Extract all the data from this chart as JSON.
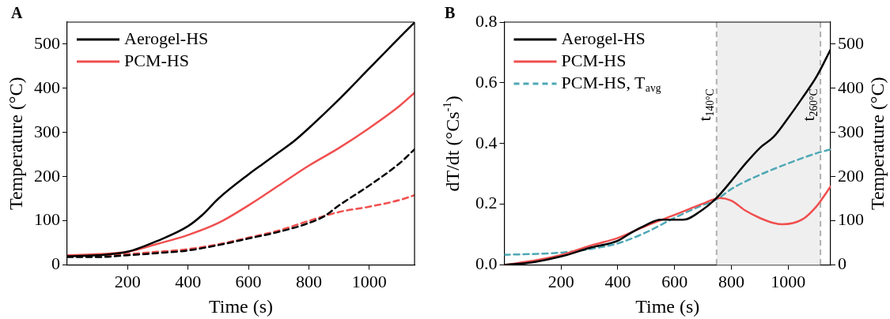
{
  "chart_data": [
    {
      "type": "line",
      "title": "A",
      "xlabel": "Time (s)",
      "ylabel": "Temperature (°C)",
      "xlim": [
        0,
        1150
      ],
      "xticks": [
        200,
        400,
        600,
        800,
        1000
      ],
      "ylim": [
        0,
        550
      ],
      "yticks": [
        0,
        100,
        200,
        300,
        400,
        500
      ],
      "legend": "top left",
      "grid": false,
      "series": [
        {
          "name": "Aerogel-HS",
          "color": "#000000",
          "x": [
            0,
            100,
            200,
            300,
            400,
            450,
            500,
            600,
            650,
            700,
            750,
            800,
            900,
            1000,
            1100,
            1150
          ],
          "values": [
            20,
            22,
            30,
            55,
            88,
            115,
            150,
            205,
            230,
            255,
            280,
            310,
            375,
            445,
            515,
            549
          ]
        },
        {
          "name": "PCM-HS",
          "color": "#f04f4f",
          "x": [
            0,
            200,
            300,
            400,
            500,
            600,
            700,
            800,
            900,
            1000,
            1100,
            1150
          ],
          "values": [
            22,
            30,
            48,
            68,
            95,
            135,
            180,
            225,
            265,
            310,
            360,
            390
          ]
        },
        {
          "color": "#000000",
          "line_style": "dashed",
          "x": [
            0,
            100,
            200,
            300,
            400,
            500,
            600,
            700,
            800,
            850,
            900,
            1000,
            1100,
            1150
          ],
          "values": [
            18,
            18,
            22,
            27,
            33,
            45,
            60,
            75,
            95,
            110,
            135,
            180,
            230,
            262
          ]
        },
        {
          "color": "#f04f4f",
          "line_style": "dashed",
          "x": [
            0,
            100,
            200,
            300,
            400,
            500,
            600,
            700,
            800,
            900,
            1000,
            1100,
            1150
          ],
          "values": [
            22,
            22,
            25,
            30,
            36,
            47,
            62,
            78,
            100,
            120,
            132,
            147,
            158
          ]
        }
      ]
    },
    {
      "type": "line",
      "title": "B",
      "xlabel": "Time (s)",
      "ylabel": "dT/dt (°Cs$^{-1}$)",
      "y2label": "Temperature (°C)",
      "xlim": [
        0,
        1150
      ],
      "xticks": [
        200,
        400,
        600,
        800,
        1000
      ],
      "ylim": [
        0,
        0.8
      ],
      "yticks": [
        {
          "value": 0,
          "label": "0.0"
        },
        0.2,
        0.4,
        0.6,
        0.8
      ],
      "y2lim": [
        0,
        550
      ],
      "y2ticks": [
        0,
        100,
        200,
        300,
        400,
        500
      ],
      "legend": "top left",
      "grid": false,
      "ref_lines": [
        {
          "axis": "x",
          "value": 748,
          "label": "t$_{140°C}$",
          "color": "#b0b0b0",
          "line_style": "dashed"
        },
        {
          "axis": "x",
          "value": 1114,
          "label": "t$_{260°C}$",
          "color": "#b0b0b0",
          "line_style": "dashed"
        }
      ],
      "bands": [
        {
          "axis": "x",
          "from": 748,
          "to": 1114,
          "color": "#efefef"
        }
      ],
      "series": [
        {
          "name": "Aerogel-HS",
          "color": "#000000",
          "x": [
            0,
            100,
            200,
            300,
            400,
            450,
            500,
            550,
            600,
            630,
            700,
            750,
            800,
            850,
            900,
            950,
            1000,
            1050,
            1100,
            1150
          ],
          "values": [
            0,
            0.009,
            0.028,
            0.056,
            0.08,
            0.108,
            0.132,
            0.149,
            0.149,
            0.149,
            0.183,
            0.223,
            0.277,
            0.334,
            0.385,
            0.423,
            0.484,
            0.55,
            0.62,
            0.71
          ]
        },
        {
          "name": "PCM-HS",
          "color": "#f04f4f",
          "x": [
            0,
            100,
            200,
            300,
            400,
            500,
            600,
            700,
            760,
            800,
            850,
            900,
            950,
            980,
            1050,
            1100,
            1150
          ],
          "values": [
            0,
            0.014,
            0.033,
            0.063,
            0.089,
            0.129,
            0.165,
            0.202,
            0.221,
            0.212,
            0.179,
            0.155,
            0.138,
            0.134,
            0.15,
            0.193,
            0.259
          ]
        },
        {
          "name": "PCM-HS, T$_{avg}$",
          "color": "#4fa8b5",
          "line_style": "dashed",
          "axis": "y2",
          "x": [
            0,
            200,
            300,
            400,
            500,
            600,
            700,
            750,
            800,
            900,
            1000,
            1100,
            1150
          ],
          "values": [
            23,
            28,
            36,
            49,
            74,
            107,
            136,
            149,
            172,
            204,
            230,
            253,
            262
          ]
        }
      ]
    }
  ]
}
